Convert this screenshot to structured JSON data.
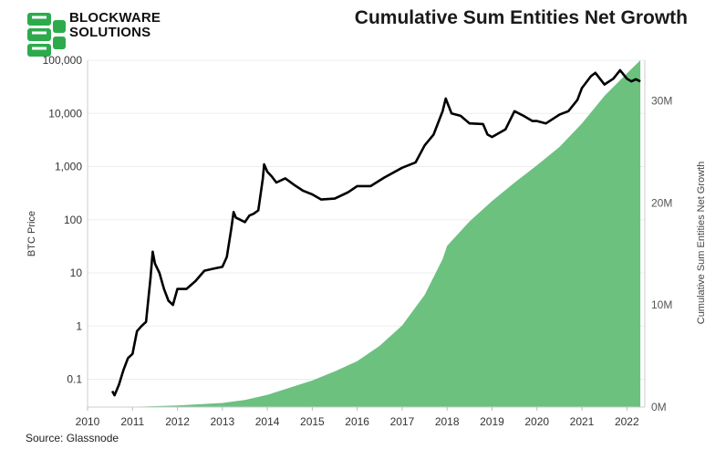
{
  "header": {
    "logo_line1": "BLOCKWARE",
    "logo_line2": "SOLUTIONS",
    "title": "Cumulative Sum Entities Net Growth"
  },
  "footer": {
    "source": "Source: Glassnode"
  },
  "colors": {
    "area_fill": "#6cc17f",
    "price_line": "#000000",
    "logo_green": "#2dab4c",
    "grid": "#ededed"
  },
  "chart_data": {
    "type": "line",
    "title": "Cumulative Sum Entities Net Growth",
    "xlabel": "",
    "ylabel": "BTC Price",
    "y2label": "Cumulative Sum Entities Net Growth",
    "x_ticks": [
      "2010",
      "2011",
      "2012",
      "2013",
      "2014",
      "2015",
      "2016",
      "2017",
      "2018",
      "2019",
      "2020",
      "2021",
      "2022"
    ],
    "x_range": [
      2010.0,
      2022.4
    ],
    "y_scale": "log",
    "y_range": [
      0.03,
      100000
    ],
    "y_ticks": [
      0.1,
      1,
      10,
      100,
      1000,
      10000,
      100000
    ],
    "y_tick_labels": [
      "0.1",
      "1",
      "10",
      "100",
      "1,000",
      "10,000",
      "100,000"
    ],
    "y2_range": [
      0,
      34000000
    ],
    "y2_ticks": [
      0,
      10000000,
      20000000,
      30000000
    ],
    "y2_tick_labels": [
      "0M",
      "10M",
      "20M",
      "30M"
    ],
    "grid": true,
    "series": [
      {
        "name": "BTC Price",
        "axis": "left",
        "color": "#000000",
        "x": [
          2010.55,
          2010.6,
          2010.7,
          2010.8,
          2010.9,
          2011.0,
          2011.1,
          2011.2,
          2011.3,
          2011.4,
          2011.45,
          2011.5,
          2011.6,
          2011.7,
          2011.8,
          2011.9,
          2012.0,
          2012.2,
          2012.4,
          2012.6,
          2012.8,
          2013.0,
          2013.1,
          2013.2,
          2013.25,
          2013.3,
          2013.4,
          2013.5,
          2013.6,
          2013.7,
          2013.8,
          2013.9,
          2013.93,
          2014.0,
          2014.1,
          2014.2,
          2014.4,
          2014.6,
          2014.8,
          2015.0,
          2015.2,
          2015.5,
          2015.8,
          2016.0,
          2016.3,
          2016.6,
          2017.0,
          2017.3,
          2017.5,
          2017.7,
          2017.9,
          2017.97,
          2018.1,
          2018.3,
          2018.5,
          2018.8,
          2018.9,
          2019.0,
          2019.3,
          2019.5,
          2019.7,
          2019.9,
          2020.0,
          2020.2,
          2020.5,
          2020.7,
          2020.9,
          2021.0,
          2021.2,
          2021.3,
          2021.5,
          2021.7,
          2021.85,
          2022.0,
          2022.1,
          2022.2,
          2022.3
        ],
        "y": [
          0.06,
          0.05,
          0.08,
          0.15,
          0.25,
          0.3,
          0.8,
          1,
          1.2,
          8,
          25,
          15,
          10,
          5,
          3,
          2.5,
          5,
          5,
          7,
          11,
          12,
          13,
          20,
          70,
          140,
          110,
          100,
          90,
          120,
          130,
          150,
          600,
          1100,
          800,
          650,
          500,
          600,
          450,
          350,
          300,
          240,
          250,
          330,
          430,
          430,
          620,
          950,
          1200,
          2500,
          4000,
          11000,
          19000,
          10000,
          9000,
          6500,
          6300,
          4000,
          3600,
          5000,
          11000,
          9000,
          7200,
          7200,
          6500,
          9500,
          11000,
          18000,
          30000,
          50000,
          58000,
          35000,
          45000,
          65000,
          45000,
          40000,
          44000,
          40000
        ]
      },
      {
        "name": "Cumulative Sum Entities Net Growth",
        "axis": "right",
        "color": "#6cc17f",
        "x": [
          2010.0,
          2011.0,
          2012.0,
          2013.0,
          2013.5,
          2014.0,
          2014.5,
          2015.0,
          2015.5,
          2016.0,
          2016.5,
          2017.0,
          2017.5,
          2017.9,
          2018.0,
          2018.5,
          2019.0,
          2019.5,
          2020.0,
          2020.5,
          2021.0,
          2021.5,
          2022.0,
          2022.3
        ],
        "y": [
          0,
          30000,
          150000,
          400000,
          700000,
          1200000,
          1900000,
          2600000,
          3500000,
          4500000,
          6000000,
          8000000,
          11000000,
          14500000,
          15800000,
          18200000,
          20200000,
          22000000,
          23700000,
          25500000,
          27800000,
          30500000,
          32700000,
          34000000
        ]
      }
    ]
  }
}
